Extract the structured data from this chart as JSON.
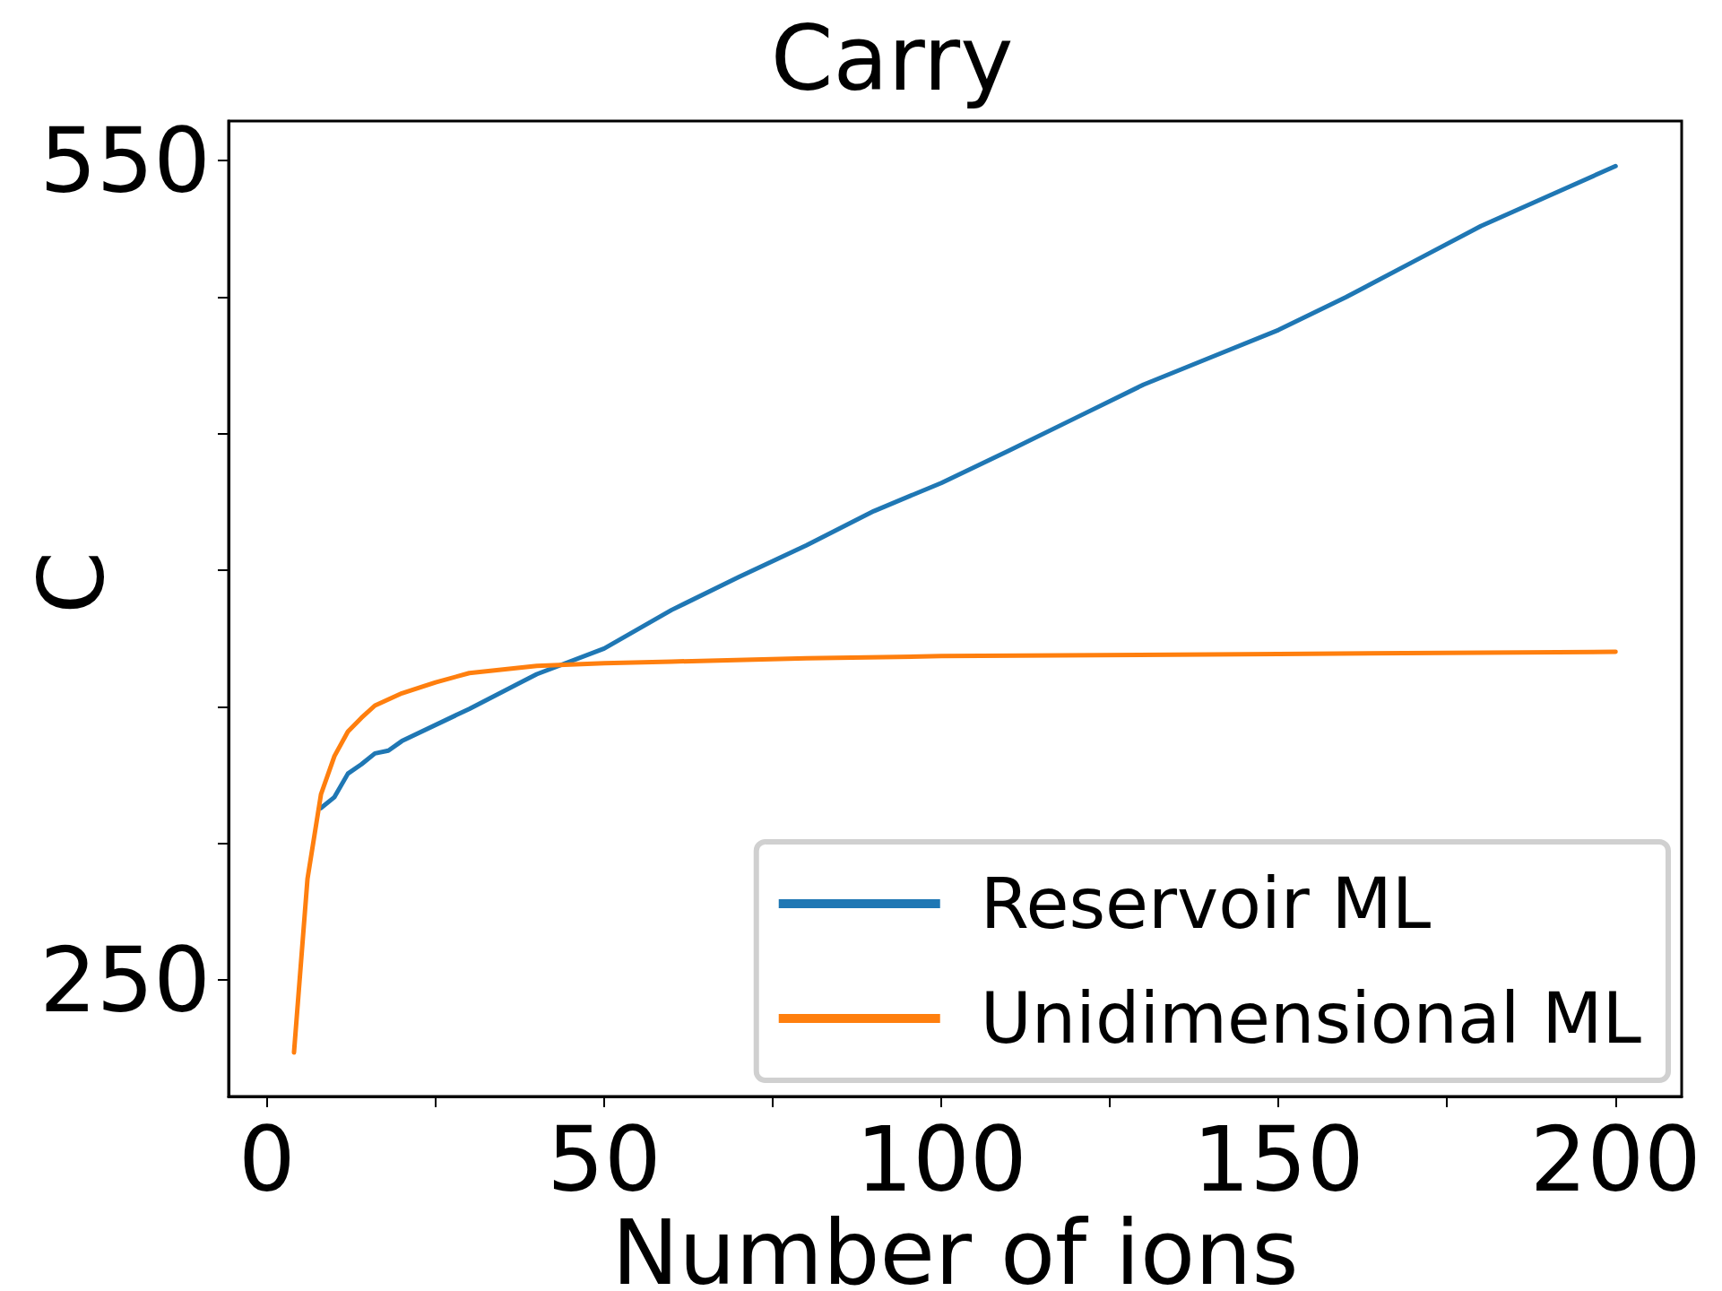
{
  "chart_data": {
    "type": "line",
    "title": "Carry",
    "xlabel": "Number of ions",
    "ylabel": "C",
    "xlim": [
      -5.7,
      209.8
    ],
    "ylim": [
      207.4,
      564.5
    ],
    "xticks": [
      0,
      {
        "value": 25,
        "label": null
      },
      50,
      {
        "value": 75,
        "label": null
      },
      100,
      {
        "value": 125,
        "label": null
      },
      150,
      {
        "value": 175,
        "label": null
      },
      200
    ],
    "yticks": [
      250,
      {
        "value": 300,
        "label": null
      },
      {
        "value": 350,
        "label": null
      },
      {
        "value": 400,
        "label": null
      },
      {
        "value": 450,
        "label": null
      },
      {
        "value": 500,
        "label": null
      },
      550
    ],
    "grid": false,
    "legend": "bottom right",
    "marker": "none",
    "line_style": "solid",
    "series": [
      {
        "name": "Reservoir ML",
        "color": "#1f77b4",
        "x": [
          8,
          10,
          12,
          14,
          16,
          18,
          20,
          30,
          40,
          50,
          60,
          70,
          80,
          90,
          100,
          110,
          120,
          130,
          140,
          150,
          160,
          170,
          180,
          190,
          200
        ],
        "values": [
          313,
          317,
          325.6,
          329,
          333,
          334,
          337.5,
          349.3,
          362,
          371.4,
          385.5,
          397.6,
          409.2,
          421.7,
          432,
          443.8,
          455.9,
          468,
          478,
          488,
          500,
          513,
          526,
          537,
          548
        ]
      },
      {
        "name": "Unidimensional ML",
        "color": "#ff7f0e",
        "x": [
          4,
          6,
          8,
          10,
          12,
          14,
          16,
          20,
          25,
          30,
          40,
          50,
          60,
          80,
          100,
          150,
          200
        ],
        "values": [
          223.5,
          287,
          318,
          332,
          341,
          346,
          350.5,
          355,
          359,
          362.4,
          365,
          366,
          366.6,
          367.8,
          368.6,
          369.4,
          370.2
        ]
      }
    ]
  }
}
